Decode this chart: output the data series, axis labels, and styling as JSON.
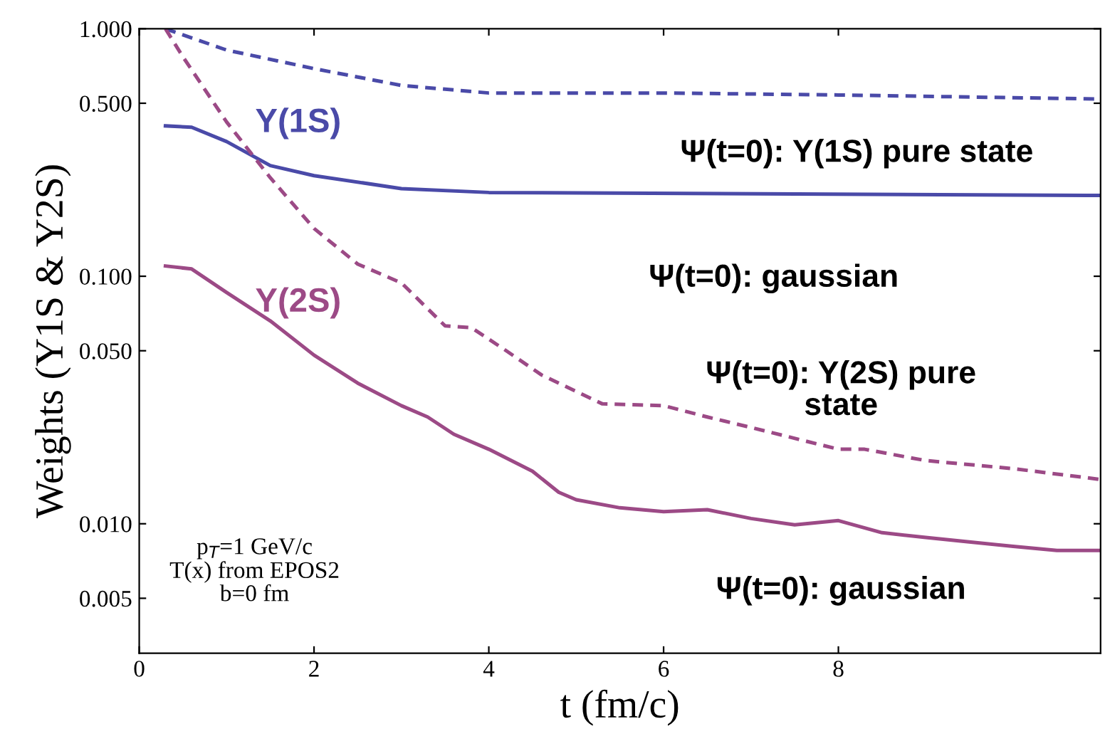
{
  "chart_data": {
    "type": "line",
    "xlabel": "t (fm/c)",
    "ylabel": "Weights (Y1S & Y2S)",
    "log": "y",
    "grid": false,
    "legend": false,
    "marker": "none",
    "xlim": [
      0,
      11
    ],
    "xticks": [
      0,
      2,
      4,
      6,
      8
    ],
    "ylim": [
      0.003,
      1.0
    ],
    "yticks": [
      {
        "value": 0.005,
        "label": "0.005"
      },
      {
        "value": 0.01,
        "label": "0.010"
      },
      {
        "value": 0.05,
        "label": "0.050"
      },
      {
        "value": 0.1,
        "label": "0.100"
      },
      {
        "value": 0.5,
        "label": "0.500"
      },
      {
        "value": 1.0,
        "label": "1.000"
      }
    ],
    "series": [
      {
        "color": "#4a4aa8",
        "line_style": "dashed",
        "x": [
          0.3,
          1,
          2,
          3,
          4,
          6,
          8,
          11
        ],
        "values": [
          1.0,
          0.82,
          0.69,
          0.59,
          0.55,
          0.55,
          0.54,
          0.52
        ]
      },
      {
        "name": "Y(1S)",
        "color": "#4a4aa8",
        "line_style": "solid",
        "x": [
          0.3,
          0.6,
          1,
          1.5,
          2,
          3,
          4,
          11
        ],
        "values": [
          0.405,
          0.4,
          0.35,
          0.28,
          0.255,
          0.226,
          0.218,
          0.212
        ]
      },
      {
        "color": "#9c4a86",
        "line_style": "dashed",
        "x": [
          0.3,
          0.5,
          1,
          1.5,
          2,
          2.5,
          3,
          3.5,
          3.8,
          4.2,
          4.6,
          5.3,
          6,
          6.5,
          7,
          8,
          8.3,
          9,
          10,
          11
        ],
        "values": [
          1.0,
          0.77,
          0.42,
          0.25,
          0.156,
          0.112,
          0.094,
          0.063,
          0.062,
          0.05,
          0.04,
          0.0305,
          0.03,
          0.027,
          0.0245,
          0.02,
          0.02,
          0.018,
          0.0167,
          0.0151
        ]
      },
      {
        "name": "Y(2S)",
        "color": "#9c4a86",
        "line_style": "solid",
        "x": [
          0.3,
          0.6,
          1,
          1.5,
          2,
          2.5,
          3,
          3.3,
          3.6,
          4,
          4.5,
          4.8,
          5,
          5.5,
          6,
          6.5,
          7,
          7.5,
          8,
          8.5,
          9,
          10,
          10.5,
          11
        ],
        "values": [
          0.11,
          0.107,
          0.086,
          0.066,
          0.048,
          0.037,
          0.03,
          0.027,
          0.023,
          0.02,
          0.0163,
          0.0134,
          0.0125,
          0.0116,
          0.0112,
          0.0114,
          0.0105,
          0.0099,
          0.0103,
          0.0092,
          0.0088,
          0.0081,
          0.0078,
          0.0078
        ]
      }
    ],
    "annotations": [
      "Ψ(t=0): Y(1S) pure state",
      "Ψ(t=0): gaussian",
      "Ψ(t=0): Y(2S) pure\nstate",
      "Ψ(t=0): gaussian",
      "p$_{T}$=1 GeV/c\nT(x) from EPOS2\nb=0 fm"
    ]
  }
}
